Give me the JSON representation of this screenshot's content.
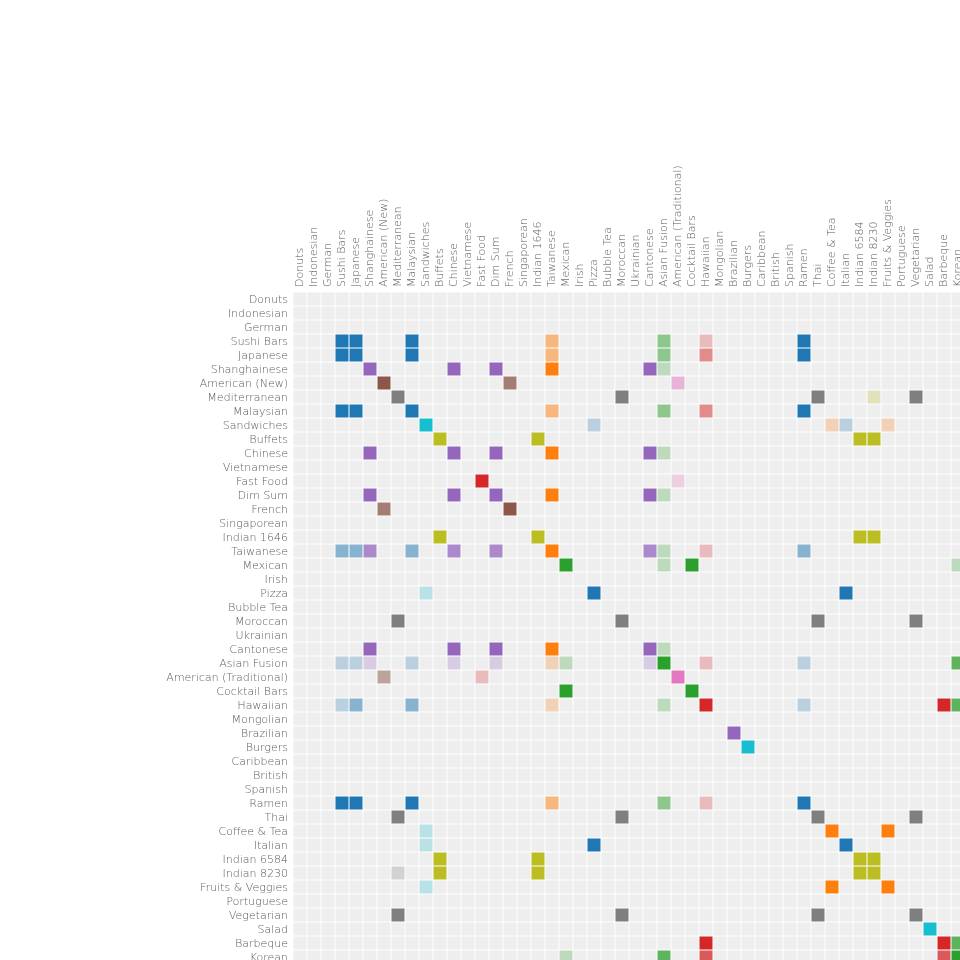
{
  "chart_data": {
    "type": "matrix",
    "categories": [
      "Donuts",
      "Indonesian",
      "German",
      "Sushi Bars",
      "Japanese",
      "Shanghainese",
      "American (New)",
      "Mediterranean",
      "Malaysian",
      "Sandwiches",
      "Buffets",
      "Chinese",
      "Vietnamese",
      "Fast Food",
      "Dim Sum",
      "French",
      "Singaporean",
      "Indian 1646",
      "Taiwanese",
      "Mexican",
      "Irish",
      "Pizza",
      "Bubble Tea",
      "Moroccan",
      "Ukrainian",
      "Cantonese",
      "Asian Fusion",
      "American (Traditional)",
      "Cocktail Bars",
      "Hawaiian",
      "Mongolian",
      "Brazilian",
      "Burgers",
      "Caribbean",
      "British",
      "Spanish",
      "Ramen",
      "Thai",
      "Coffee & Tea",
      "Italian",
      "Indian 6584",
      "Indian 8230",
      "Fruits & Veggies",
      "Portuguese",
      "Vegetarian",
      "Salad",
      "Barbeque",
      "Korean"
    ],
    "groups": [
      {
        "color": "#1f77b4",
        "members": [
          3,
          4,
          8,
          36,
          21,
          39
        ]
      },
      {
        "color": "#9467bd",
        "members": [
          5,
          11,
          14,
          25,
          31
        ]
      },
      {
        "color": "#8c564b",
        "members": [
          6,
          15
        ]
      },
      {
        "color": "#7f7f7f",
        "members": [
          7,
          23,
          37,
          44
        ]
      },
      {
        "color": "#17becf",
        "members": [
          9,
          32,
          45
        ]
      },
      {
        "color": "#bcbd22",
        "members": [
          10,
          17,
          40,
          41
        ]
      },
      {
        "color": "#d62728",
        "members": [
          13,
          29,
          46
        ]
      },
      {
        "color": "#ff7f0e",
        "members": [
          18,
          38,
          42
        ]
      },
      {
        "color": "#2ca02c",
        "members": [
          19,
          26,
          28,
          47
        ]
      },
      {
        "color": "#e377c2",
        "members": [
          27
        ]
      }
    ],
    "cells": [
      [
        3,
        3,
        4
      ],
      [
        3,
        4,
        4
      ],
      [
        3,
        8,
        4
      ],
      [
        3,
        18,
        2
      ],
      [
        3,
        26,
        2
      ],
      [
        3,
        29,
        1
      ],
      [
        3,
        36,
        4
      ],
      [
        4,
        3,
        4
      ],
      [
        4,
        4,
        4
      ],
      [
        4,
        8,
        4
      ],
      [
        4,
        18,
        2
      ],
      [
        4,
        26,
        2
      ],
      [
        4,
        29,
        2
      ],
      [
        4,
        36,
        4
      ],
      [
        5,
        5,
        4
      ],
      [
        5,
        11,
        4
      ],
      [
        5,
        14,
        4
      ],
      [
        5,
        18,
        4
      ],
      [
        5,
        25,
        4
      ],
      [
        5,
        26,
        1
      ],
      [
        6,
        6,
        4
      ],
      [
        6,
        15,
        3
      ],
      [
        6,
        27,
        2
      ],
      [
        7,
        7,
        4
      ],
      [
        7,
        23,
        4
      ],
      [
        7,
        37,
        4
      ],
      [
        7,
        41,
        1
      ],
      [
        7,
        44,
        4
      ],
      [
        8,
        3,
        4
      ],
      [
        8,
        4,
        4
      ],
      [
        8,
        8,
        4
      ],
      [
        8,
        18,
        2
      ],
      [
        8,
        26,
        2
      ],
      [
        8,
        29,
        2
      ],
      [
        8,
        36,
        4
      ],
      [
        9,
        9,
        4
      ],
      [
        9,
        21,
        1
      ],
      [
        9,
        38,
        1
      ],
      [
        9,
        39,
        1
      ],
      [
        9,
        42,
        1
      ],
      [
        10,
        10,
        4
      ],
      [
        10,
        17,
        4
      ],
      [
        10,
        40,
        4
      ],
      [
        10,
        41,
        4
      ],
      [
        11,
        5,
        4
      ],
      [
        11,
        11,
        4
      ],
      [
        11,
        14,
        4
      ],
      [
        11,
        18,
        4
      ],
      [
        11,
        25,
        4
      ],
      [
        11,
        26,
        1
      ],
      [
        13,
        13,
        4
      ],
      [
        13,
        27,
        1
      ],
      [
        14,
        5,
        4
      ],
      [
        14,
        11,
        4
      ],
      [
        14,
        14,
        4
      ],
      [
        14,
        18,
        4
      ],
      [
        14,
        25,
        4
      ],
      [
        14,
        26,
        1
      ],
      [
        15,
        6,
        3
      ],
      [
        15,
        15,
        4
      ],
      [
        17,
        10,
        4
      ],
      [
        17,
        17,
        4
      ],
      [
        17,
        40,
        4
      ],
      [
        17,
        41,
        4
      ],
      [
        18,
        3,
        2
      ],
      [
        18,
        4,
        2
      ],
      [
        18,
        5,
        3
      ],
      [
        18,
        8,
        2
      ],
      [
        18,
        11,
        3
      ],
      [
        18,
        14,
        3
      ],
      [
        18,
        18,
        4
      ],
      [
        18,
        25,
        3
      ],
      [
        18,
        26,
        1
      ],
      [
        18,
        29,
        1
      ],
      [
        18,
        36,
        2
      ],
      [
        19,
        19,
        4
      ],
      [
        19,
        26,
        1
      ],
      [
        19,
        28,
        4
      ],
      [
        19,
        47,
        1
      ],
      [
        21,
        9,
        1
      ],
      [
        21,
        21,
        4
      ],
      [
        21,
        39,
        4
      ],
      [
        23,
        7,
        4
      ],
      [
        23,
        23,
        4
      ],
      [
        23,
        37,
        4
      ],
      [
        23,
        44,
        4
      ],
      [
        25,
        5,
        4
      ],
      [
        25,
        11,
        4
      ],
      [
        25,
        14,
        4
      ],
      [
        25,
        18,
        4
      ],
      [
        25,
        25,
        4
      ],
      [
        25,
        26,
        1
      ],
      [
        26,
        3,
        1
      ],
      [
        26,
        4,
        1
      ],
      [
        26,
        5,
        1
      ],
      [
        26,
        8,
        1
      ],
      [
        26,
        11,
        1
      ],
      [
        26,
        14,
        1
      ],
      [
        26,
        18,
        1
      ],
      [
        26,
        19,
        1
      ],
      [
        26,
        25,
        1
      ],
      [
        26,
        26,
        4
      ],
      [
        26,
        29,
        1
      ],
      [
        26,
        36,
        1
      ],
      [
        26,
        47,
        3
      ],
      [
        27,
        6,
        2
      ],
      [
        27,
        13,
        1
      ],
      [
        27,
        27,
        4
      ],
      [
        28,
        19,
        4
      ],
      [
        28,
        28,
        4
      ],
      [
        29,
        3,
        1
      ],
      [
        29,
        4,
        2
      ],
      [
        29,
        8,
        2
      ],
      [
        29,
        18,
        1
      ],
      [
        29,
        26,
        1
      ],
      [
        29,
        29,
        4
      ],
      [
        29,
        36,
        1
      ],
      [
        29,
        46,
        4
      ],
      [
        29,
        47,
        3
      ],
      [
        31,
        31,
        4
      ],
      [
        32,
        32,
        4
      ],
      [
        36,
        3,
        4
      ],
      [
        36,
        4,
        4
      ],
      [
        36,
        8,
        4
      ],
      [
        36,
        18,
        2
      ],
      [
        36,
        26,
        2
      ],
      [
        36,
        29,
        1
      ],
      [
        36,
        36,
        4
      ],
      [
        37,
        7,
        4
      ],
      [
        37,
        23,
        4
      ],
      [
        37,
        37,
        4
      ],
      [
        37,
        44,
        4
      ],
      [
        38,
        9,
        1
      ],
      [
        38,
        38,
        4
      ],
      [
        38,
        42,
        4
      ],
      [
        39,
        9,
        1
      ],
      [
        39,
        21,
        4
      ],
      [
        39,
        39,
        4
      ],
      [
        40,
        10,
        4
      ],
      [
        40,
        17,
        4
      ],
      [
        40,
        40,
        4
      ],
      [
        40,
        41,
        4
      ],
      [
        41,
        7,
        1
      ],
      [
        41,
        10,
        4
      ],
      [
        41,
        17,
        4
      ],
      [
        41,
        40,
        4
      ],
      [
        41,
        41,
        4
      ],
      [
        42,
        9,
        1
      ],
      [
        42,
        38,
        4
      ],
      [
        42,
        42,
        4
      ],
      [
        44,
        7,
        4
      ],
      [
        44,
        23,
        4
      ],
      [
        44,
        37,
        4
      ],
      [
        44,
        44,
        4
      ],
      [
        45,
        45,
        4
      ],
      [
        46,
        29,
        4
      ],
      [
        46,
        46,
        4
      ],
      [
        46,
        47,
        3
      ],
      [
        47,
        19,
        1
      ],
      [
        47,
        26,
        3
      ],
      [
        47,
        29,
        3
      ],
      [
        47,
        46,
        3
      ],
      [
        47,
        47,
        4
      ]
    ]
  }
}
